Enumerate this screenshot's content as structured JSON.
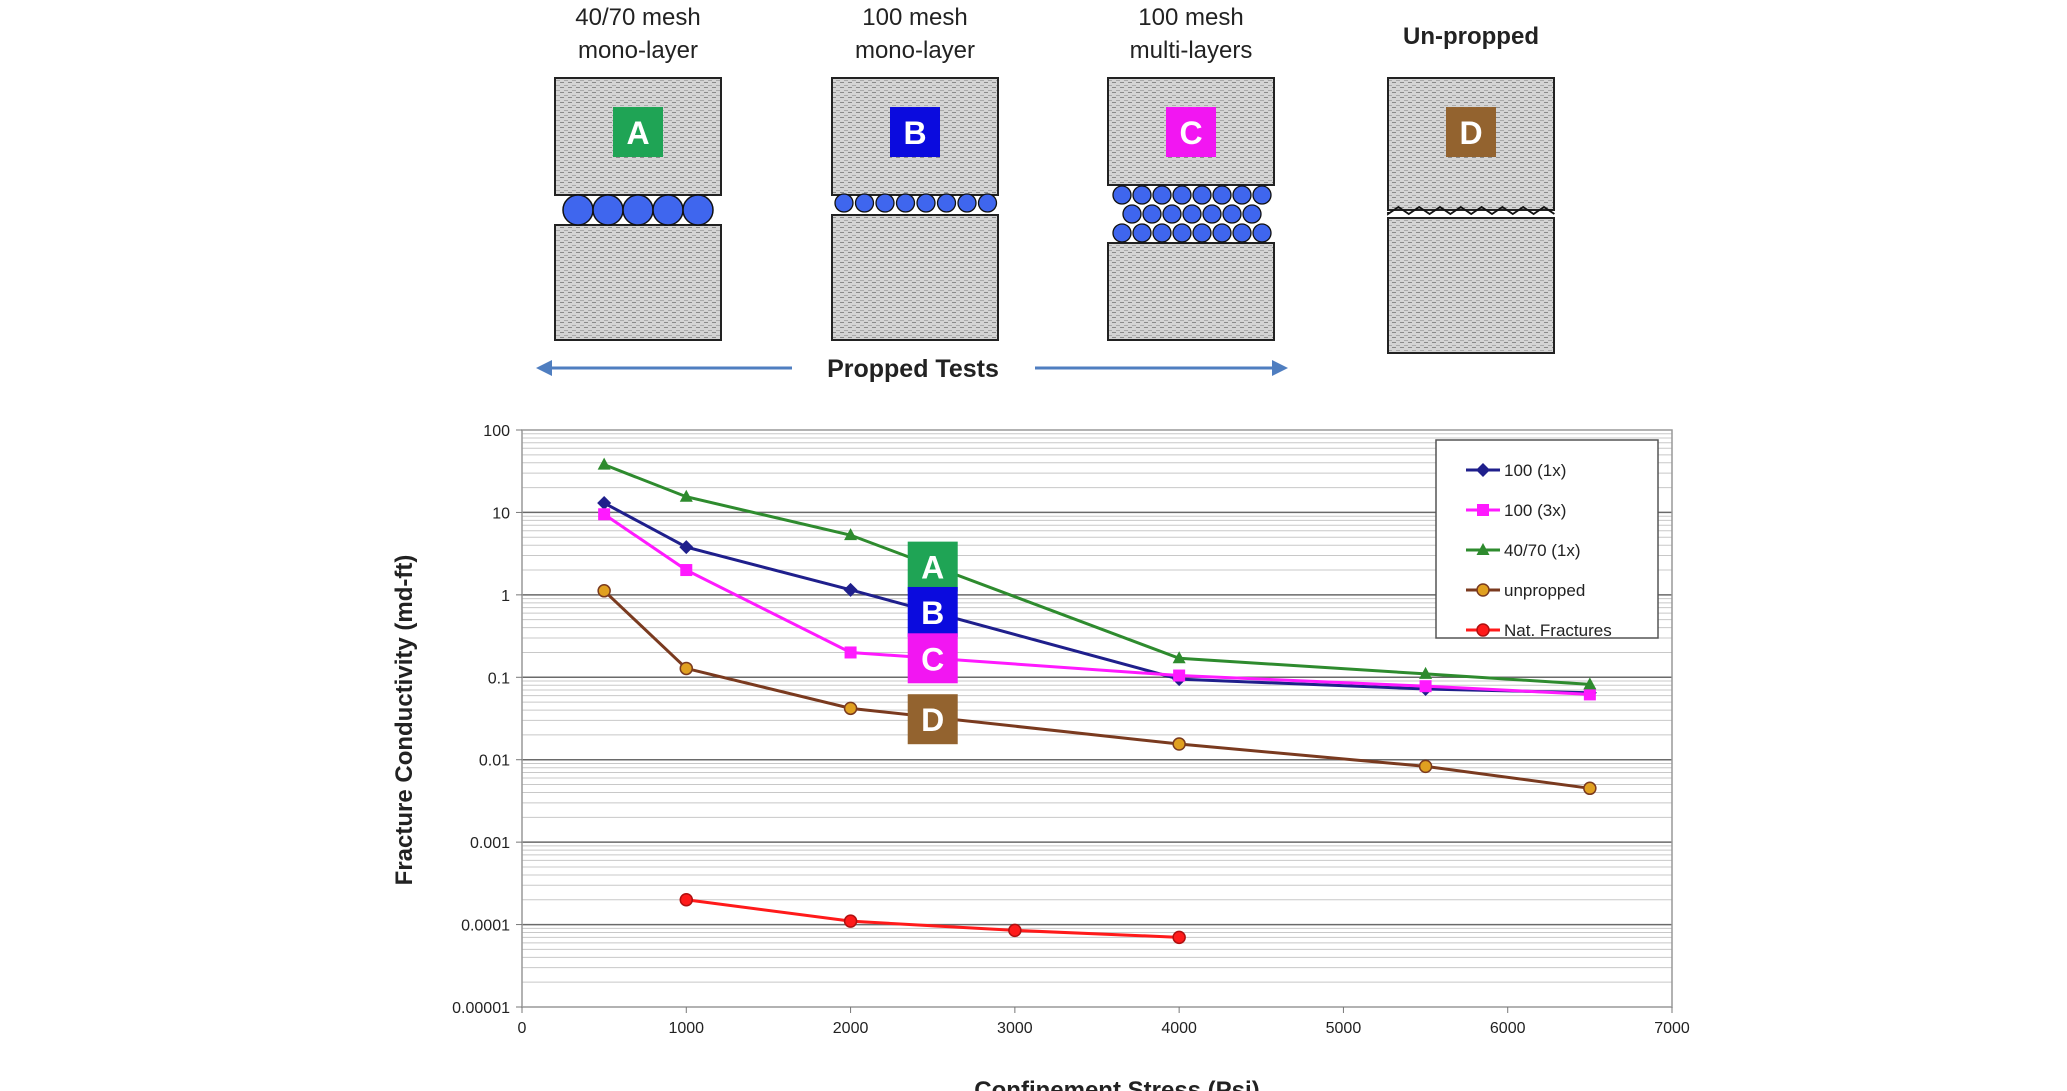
{
  "schematics": [
    {
      "top_label": "40/70 mesh",
      "bottom_label": "mono-layer",
      "letter": "A",
      "color": "#1fa455",
      "arrangement": "mono-large"
    },
    {
      "top_label": "100 mesh",
      "bottom_label": "mono-layer",
      "letter": "B",
      "color": "#0b0bde",
      "arrangement": "mono-small"
    },
    {
      "top_label": "100 mesh",
      "bottom_label": "multi-layers",
      "letter": "C",
      "color": "#f216f2",
      "arrangement": "multi"
    },
    {
      "top_label": "",
      "bottom_label": "Un-propped",
      "letter": "D",
      "color": "#93632f",
      "arrangement": "unpropped"
    }
  ],
  "propped_tests_label": "Propped Tests",
  "colors": {
    "arrow": "#4f7ec0",
    "proppant": "#3f66ee",
    "rock": "#cfcfcf"
  },
  "chart_data": {
    "type": "line",
    "xlabel": "Confinement Stress (Psi)",
    "ylabel": "Fracture Conductivity (md-ft)",
    "xlim": [
      0,
      7000
    ],
    "ylim": [
      1e-05,
      100
    ],
    "yscale": "log",
    "x_ticks": [
      "0",
      "1000",
      "2000",
      "3000",
      "4000",
      "5000",
      "6000",
      "7000"
    ],
    "y_ticks": [
      "0.00001",
      "0.0001",
      "0.001",
      "0.01",
      "0.1",
      "1",
      "10",
      "100"
    ],
    "grid": true,
    "legend_position": "top-right",
    "series": [
      {
        "name": "100 (1x)",
        "color": "#1f1f8c",
        "marker": "diamond",
        "x": [
          500,
          1000,
          2000,
          4000,
          5500,
          6500
        ],
        "y": [
          13,
          3.8,
          1.15,
          0.095,
          0.072,
          0.065
        ]
      },
      {
        "name": "100 (3x)",
        "color": "#ff1aff",
        "marker": "square",
        "x": [
          500,
          1000,
          2000,
          4000,
          5500,
          6500
        ],
        "y": [
          9.5,
          2.0,
          0.2,
          0.105,
          0.078,
          0.062
        ]
      },
      {
        "name": "40/70 (1x)",
        "color": "#2e8b2e",
        "marker": "triangle",
        "x": [
          500,
          1000,
          2000,
          4000,
          5500,
          6500
        ],
        "y": [
          38,
          15.5,
          5.3,
          0.17,
          0.11,
          0.082
        ]
      },
      {
        "name": "unpropped",
        "color": "#7a3a1f",
        "marker": "circle",
        "x": [
          500,
          1000,
          2000,
          4000,
          5500,
          6500
        ],
        "y": [
          1.12,
          0.128,
          0.042,
          0.0155,
          0.0083,
          0.0045
        ]
      },
      {
        "name": "Nat. Fractures",
        "color": "#ff1a1a",
        "marker": "circle",
        "x": [
          1000,
          2000,
          3000,
          4000
        ],
        "y": [
          0.0002,
          0.00011,
          8.5e-05,
          7e-05
        ]
      }
    ],
    "annotations": [
      {
        "letter": "A",
        "color": "#1fa455"
      },
      {
        "letter": "B",
        "color": "#0b0bde"
      },
      {
        "letter": "C",
        "color": "#f216f2"
      },
      {
        "letter": "D",
        "color": "#93632f"
      }
    ]
  }
}
